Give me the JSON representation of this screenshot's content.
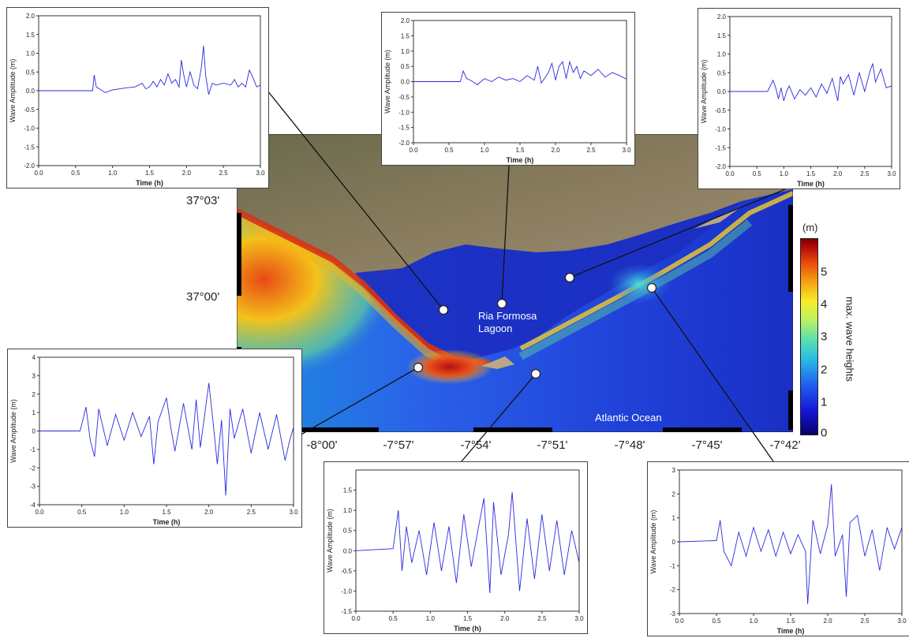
{
  "map": {
    "lagoon_label_line1": "Ria Formosa",
    "lagoon_label_line2": "Lagoon",
    "ocean_label": "Atlantic Ocean",
    "lat_ticks": [
      "37°03'",
      "37°00'"
    ],
    "lon_ticks": [
      "-8°00'",
      "-7°57'",
      "-7°54'",
      "-7°51'",
      "-7°48'",
      "-7°45'",
      "-7°42'"
    ]
  },
  "colorbar": {
    "unit": "(m)",
    "title": "max. wave heights",
    "ticks": [
      "5",
      "4",
      "3",
      "2",
      "1",
      "0"
    ],
    "colors": [
      "#07016a",
      "#1f5cf0",
      "#27b9e8",
      "#b8f06a",
      "#f6ee28",
      "#e94a0b",
      "#7a0000"
    ]
  },
  "chart_data": [
    {
      "type": "line",
      "id": "gauge-1",
      "xlabel": "Time (h)",
      "ylabel": "Wave Amplitude (m)",
      "xlim": [
        0,
        3.0
      ],
      "ylim": [
        -2.0,
        2.0
      ],
      "xticks": [
        "0.0",
        "0.5",
        "1.0",
        "1.5",
        "2.0",
        "2.5",
        "3.0"
      ],
      "yticks": [
        "2.0",
        "1.5",
        "1.0",
        "0.5",
        "0.0",
        "-0.5",
        "-1.0",
        "-1.5",
        "-2.0"
      ],
      "x": [
        0,
        0.73,
        0.75,
        0.78,
        0.82,
        0.9,
        1.0,
        1.1,
        1.2,
        1.3,
        1.4,
        1.45,
        1.5,
        1.55,
        1.6,
        1.65,
        1.7,
        1.75,
        1.8,
        1.85,
        1.9,
        1.93,
        1.96,
        2.0,
        2.05,
        2.1,
        2.15,
        2.2,
        2.23,
        2.26,
        2.3,
        2.35,
        2.4,
        2.5,
        2.6,
        2.65,
        2.7,
        2.75,
        2.8,
        2.85,
        2.9,
        2.95,
        3.0
      ],
      "y": [
        0,
        0,
        0.42,
        0.1,
        0.05,
        -0.05,
        0.02,
        0.05,
        0.08,
        0.1,
        0.2,
        0.05,
        0.1,
        0.25,
        0.1,
        0.3,
        0.15,
        0.45,
        0.2,
        0.3,
        0.1,
        0.82,
        0.45,
        0.1,
        0.5,
        0.15,
        0.05,
        0.6,
        1.2,
        0.4,
        -0.1,
        0.2,
        0.15,
        0.2,
        0.15,
        0.3,
        0.1,
        0.2,
        0.1,
        0.55,
        0.35,
        0.1,
        0.15
      ]
    },
    {
      "type": "line",
      "id": "gauge-2",
      "xlabel": "Time (h)",
      "ylabel": "Wave Amplitude (m)",
      "xlim": [
        0,
        3.0
      ],
      "ylim": [
        -2.0,
        2.0
      ],
      "xticks": [
        "0.0",
        "0.5",
        "1.0",
        "1.5",
        "2.0",
        "2.5",
        "3.0"
      ],
      "yticks": [
        "2.0",
        "1.5",
        "1.0",
        "0.5",
        "0.0",
        "-0.5",
        "-1.0",
        "-1.5",
        "-2.0"
      ],
      "x": [
        0,
        0.66,
        0.7,
        0.75,
        0.8,
        0.9,
        1.0,
        1.1,
        1.2,
        1.3,
        1.4,
        1.5,
        1.6,
        1.7,
        1.75,
        1.8,
        1.9,
        1.95,
        2.0,
        2.05,
        2.1,
        2.15,
        2.2,
        2.25,
        2.3,
        2.35,
        2.4,
        2.5,
        2.6,
        2.7,
        2.8,
        2.9,
        3.0
      ],
      "y": [
        0,
        0,
        0.35,
        0.1,
        0.05,
        -0.1,
        0.1,
        0.0,
        0.15,
        0.05,
        0.1,
        0.0,
        0.2,
        0.05,
        0.5,
        -0.05,
        0.3,
        0.6,
        0.05,
        0.5,
        0.65,
        0.1,
        0.65,
        0.3,
        0.5,
        0.1,
        0.35,
        0.2,
        0.4,
        0.15,
        0.3,
        0.2,
        0.08
      ]
    },
    {
      "type": "line",
      "id": "gauge-3",
      "xlabel": "Time (h)",
      "ylabel": "Wave Amplitude (m)",
      "xlim": [
        0,
        3.0
      ],
      "ylim": [
        -2.0,
        2.0
      ],
      "xticks": [
        "0.0",
        "0.5",
        "1.0",
        "1.5",
        "2.0",
        "2.5",
        "3.0"
      ],
      "yticks": [
        "2.0",
        "1.5",
        "1.0",
        "0.5",
        "0.0",
        "-0.5",
        "-1.0",
        "-1.5",
        "-2.0"
      ],
      "x": [
        0,
        0.7,
        0.8,
        0.85,
        0.9,
        0.95,
        1.0,
        1.05,
        1.1,
        1.2,
        1.3,
        1.4,
        1.5,
        1.6,
        1.7,
        1.8,
        1.9,
        2.0,
        2.05,
        2.1,
        2.2,
        2.3,
        2.4,
        2.5,
        2.6,
        2.65,
        2.7,
        2.8,
        2.9,
        3.0
      ],
      "y": [
        0,
        0,
        0.3,
        0.1,
        -0.2,
        0.1,
        -0.25,
        0.0,
        0.15,
        -0.2,
        0.05,
        -0.1,
        0.1,
        -0.15,
        0.2,
        -0.05,
        0.35,
        -0.25,
        0.4,
        0.2,
        0.45,
        -0.1,
        0.5,
        0.0,
        0.55,
        0.75,
        0.25,
        0.6,
        0.1,
        0.15
      ]
    },
    {
      "type": "line",
      "id": "gauge-4",
      "xlabel": "Time (h)",
      "ylabel": "Wave Amplitude (m)",
      "xlim": [
        0,
        3.0
      ],
      "ylim": [
        -4,
        4
      ],
      "xticks": [
        "0.0",
        "0.5",
        "1.0",
        "1.5",
        "2.0",
        "2.5",
        "3.0"
      ],
      "yticks": [
        "4",
        "3",
        "2",
        "1",
        "0",
        "-1",
        "-2",
        "-3",
        "-4"
      ],
      "x": [
        0,
        0.48,
        0.55,
        0.6,
        0.65,
        0.7,
        0.8,
        0.9,
        1.0,
        1.1,
        1.2,
        1.3,
        1.35,
        1.4,
        1.5,
        1.55,
        1.6,
        1.7,
        1.8,
        1.85,
        1.9,
        2.0,
        2.05,
        2.1,
        2.15,
        2.2,
        2.25,
        2.3,
        2.4,
        2.5,
        2.6,
        2.7,
        2.8,
        2.9,
        2.95,
        3.0
      ],
      "y": [
        0,
        0,
        1.3,
        -0.5,
        -1.4,
        1.2,
        -0.8,
        0.9,
        -0.5,
        1.0,
        -0.3,
        0.8,
        -1.8,
        0.5,
        1.8,
        0.2,
        -1.1,
        1.5,
        -1.0,
        1.7,
        -0.9,
        2.6,
        0.5,
        -1.8,
        0.6,
        -3.5,
        1.2,
        -0.4,
        1.2,
        -1.2,
        1.0,
        -1.0,
        0.9,
        -1.6,
        -0.6,
        0.2
      ]
    },
    {
      "type": "line",
      "id": "gauge-5",
      "xlabel": "Time (h)",
      "ylabel": "Wave Amplitude (m)",
      "xlim": [
        0,
        3.0
      ],
      "ylim": [
        -1.5,
        2.0
      ],
      "xticks": [
        "0.0",
        "0.5",
        "1.0",
        "1.5",
        "2.0",
        "2.5",
        "3.0"
      ],
      "yticks": [
        "1.5",
        "1.0",
        "0.5",
        "0.0",
        "-0.5",
        "-1.0",
        "-1.5"
      ],
      "x": [
        0,
        0.5,
        0.57,
        0.62,
        0.68,
        0.75,
        0.85,
        0.95,
        1.05,
        1.15,
        1.25,
        1.35,
        1.45,
        1.55,
        1.65,
        1.72,
        1.8,
        1.85,
        1.95,
        2.05,
        2.1,
        2.2,
        2.3,
        2.4,
        2.5,
        2.6,
        2.7,
        2.8,
        2.9,
        3.0
      ],
      "y": [
        0,
        0.05,
        1.0,
        -0.5,
        0.6,
        -0.3,
        0.5,
        -0.6,
        0.7,
        -0.5,
        0.6,
        -0.8,
        0.9,
        -0.4,
        0.6,
        1.3,
        -1.05,
        1.2,
        -0.6,
        0.4,
        1.45,
        -1.0,
        0.8,
        -0.7,
        0.9,
        -0.5,
        0.75,
        -0.6,
        0.5,
        -0.3
      ]
    },
    {
      "type": "line",
      "id": "gauge-6",
      "xlabel": "Time (h)",
      "ylabel": "Wave Amplitude (m)",
      "xlim": [
        0,
        3.0
      ],
      "ylim": [
        -3,
        3
      ],
      "xticks": [
        "0.0",
        "0.5",
        "1.0",
        "1.5",
        "2.0",
        "2.5",
        "3.0"
      ],
      "yticks": [
        "3",
        "2",
        "1",
        "0",
        "-1",
        "-2",
        "-3"
      ],
      "x": [
        0,
        0.5,
        0.55,
        0.6,
        0.7,
        0.8,
        0.9,
        1.0,
        1.1,
        1.2,
        1.3,
        1.4,
        1.5,
        1.6,
        1.7,
        1.73,
        1.8,
        1.9,
        2.0,
        2.05,
        2.1,
        2.2,
        2.25,
        2.3,
        2.4,
        2.5,
        2.6,
        2.7,
        2.8,
        2.9,
        3.0
      ],
      "y": [
        0,
        0.05,
        0.9,
        -0.4,
        -1.0,
        0.4,
        -0.6,
        0.6,
        -0.4,
        0.5,
        -0.6,
        0.4,
        -0.5,
        0.3,
        -0.4,
        -2.6,
        0.9,
        -0.5,
        0.7,
        2.4,
        -0.6,
        0.3,
        -2.3,
        0.8,
        1.1,
        -0.6,
        0.5,
        -1.2,
        0.6,
        -0.3,
        0.6
      ]
    }
  ]
}
